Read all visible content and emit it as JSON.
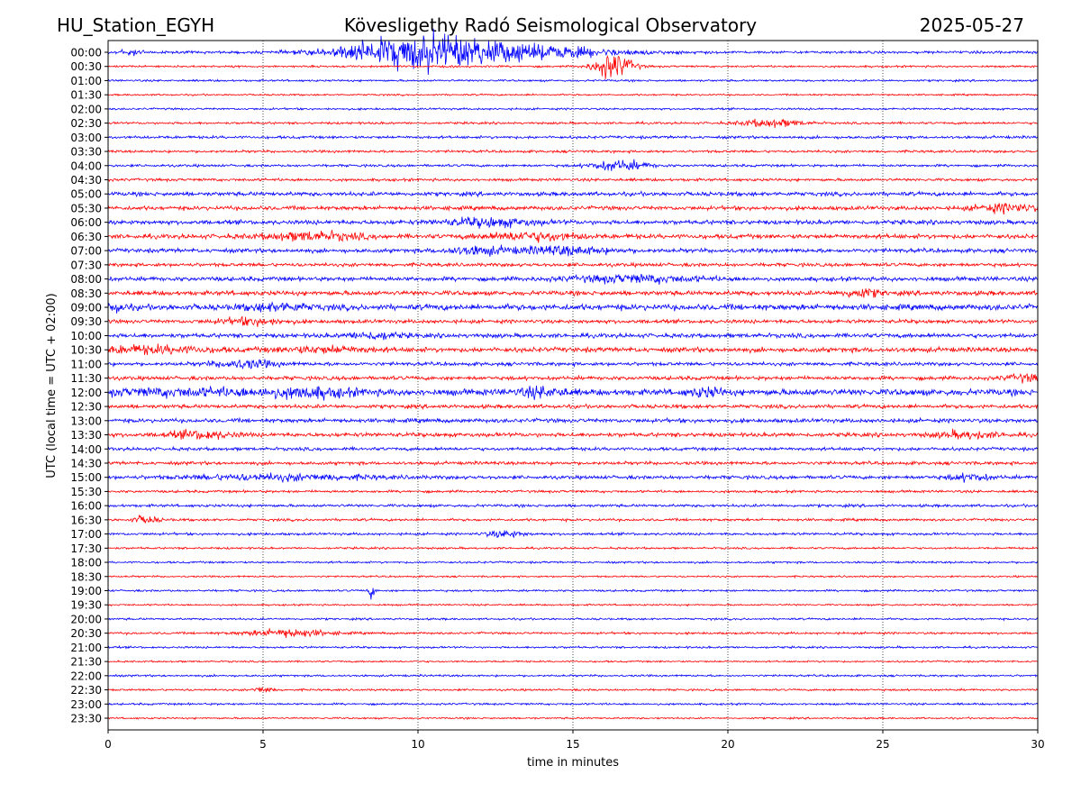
{
  "header": {
    "station": "HU_Station_EGYH",
    "observatory": "Kövesligethy Radó Seismological Observatory",
    "date": "2025-05-27"
  },
  "chart_data": {
    "type": "line",
    "xlabel": "time in minutes",
    "ylabel": "UTC (local time = UTC + 02:00)",
    "xlim": [
      0,
      30
    ],
    "x_ticks": [
      0,
      5,
      10,
      15,
      20,
      25,
      30
    ],
    "grid": "vertical dotted at x ticks",
    "series_colors": [
      "#0000ff",
      "#ff0000"
    ],
    "rows": [
      {
        "label": "00:00",
        "color": "#0000ff",
        "amp": 1.0,
        "bursts": [
          [
            9.9,
            2.2,
            11
          ],
          [
            12.5,
            3.5,
            6
          ],
          [
            0.7,
            0.5,
            2
          ]
        ]
      },
      {
        "label": "00:30",
        "color": "#ff0000",
        "amp": 0.8,
        "bursts": [
          [
            16.3,
            0.6,
            10
          ]
        ]
      },
      {
        "label": "01:00",
        "color": "#0000ff",
        "amp": 0.8,
        "bursts": []
      },
      {
        "label": "01:30",
        "color": "#ff0000",
        "amp": 0.7,
        "bursts": []
      },
      {
        "label": "02:00",
        "color": "#0000ff",
        "amp": 0.8,
        "bursts": []
      },
      {
        "label": "02:30",
        "color": "#ff0000",
        "amp": 0.9,
        "bursts": [
          [
            21.4,
            1.0,
            3
          ]
        ]
      },
      {
        "label": "03:00",
        "color": "#0000ff",
        "amp": 1.1,
        "bursts": []
      },
      {
        "label": "03:30",
        "color": "#ff0000",
        "amp": 1.0,
        "bursts": []
      },
      {
        "label": "04:00",
        "color": "#0000ff",
        "amp": 1.0,
        "bursts": [
          [
            16.5,
            0.9,
            4
          ]
        ]
      },
      {
        "label": "04:30",
        "color": "#ff0000",
        "amp": 1.1,
        "bursts": []
      },
      {
        "label": "05:00",
        "color": "#0000ff",
        "amp": 1.6,
        "bursts": []
      },
      {
        "label": "05:30",
        "color": "#ff0000",
        "amp": 1.6,
        "bursts": [
          [
            29.0,
            1.0,
            3
          ]
        ]
      },
      {
        "label": "06:00",
        "color": "#0000ff",
        "amp": 1.7,
        "bursts": [
          [
            12.3,
            1.5,
            3
          ]
        ]
      },
      {
        "label": "06:30",
        "color": "#ff0000",
        "amp": 1.8,
        "bursts": [
          [
            6.6,
            1.5,
            3
          ],
          [
            13.7,
            1.5,
            3
          ]
        ]
      },
      {
        "label": "07:00",
        "color": "#0000ff",
        "amp": 1.6,
        "bursts": [
          [
            11.9,
            1.0,
            3
          ],
          [
            14.7,
            1.5,
            3
          ]
        ]
      },
      {
        "label": "07:30",
        "color": "#ff0000",
        "amp": 1.4,
        "bursts": []
      },
      {
        "label": "08:00",
        "color": "#0000ff",
        "amp": 1.7,
        "bursts": [
          [
            17.0,
            2.0,
            2.5
          ]
        ]
      },
      {
        "label": "08:30",
        "color": "#ff0000",
        "amp": 1.8,
        "bursts": [
          [
            24.3,
            0.6,
            3
          ]
        ]
      },
      {
        "label": "09:00",
        "color": "#0000ff",
        "amp": 2.3,
        "bursts": [
          [
            5.5,
            1.0,
            2.5
          ],
          [
            0.2,
            0.4,
            3
          ]
        ]
      },
      {
        "label": "09:30",
        "color": "#ff0000",
        "amp": 1.5,
        "bursts": [
          [
            4.6,
            1.0,
            2.5
          ]
        ]
      },
      {
        "label": "10:00",
        "color": "#0000ff",
        "amp": 1.7,
        "bursts": [
          [
            8.6,
            0.8,
            2.5
          ]
        ]
      },
      {
        "label": "10:30",
        "color": "#ff0000",
        "amp": 1.9,
        "bursts": [
          [
            1.2,
            2.0,
            2.5
          ],
          [
            7.0,
            1.5,
            2
          ]
        ]
      },
      {
        "label": "11:00",
        "color": "#0000ff",
        "amp": 1.4,
        "bursts": [
          [
            4.4,
            1.0,
            3
          ]
        ]
      },
      {
        "label": "11:30",
        "color": "#ff0000",
        "amp": 1.5,
        "bursts": [
          [
            29.6,
            0.6,
            2.5
          ]
        ]
      },
      {
        "label": "12:00",
        "color": "#0000ff",
        "amp": 2.5,
        "bursts": [
          [
            6.5,
            1.5,
            3
          ],
          [
            2.5,
            3.0,
            2
          ],
          [
            14.0,
            0.8,
            3
          ],
          [
            19.3,
            0.5,
            3
          ]
        ]
      },
      {
        "label": "12:30",
        "color": "#ff0000",
        "amp": 1.5,
        "bursts": []
      },
      {
        "label": "13:00",
        "color": "#0000ff",
        "amp": 1.6,
        "bursts": []
      },
      {
        "label": "13:30",
        "color": "#ff0000",
        "amp": 1.6,
        "bursts": [
          [
            3.0,
            1.0,
            3
          ],
          [
            27.7,
            1.0,
            2.5
          ]
        ]
      },
      {
        "label": "14:00",
        "color": "#0000ff",
        "amp": 1.3,
        "bursts": []
      },
      {
        "label": "14:30",
        "color": "#ff0000",
        "amp": 1.3,
        "bursts": []
      },
      {
        "label": "15:00",
        "color": "#0000ff",
        "amp": 1.4,
        "bursts": [
          [
            5.5,
            3.0,
            2
          ],
          [
            27.8,
            0.7,
            2.5
          ]
        ]
      },
      {
        "label": "15:30",
        "color": "#ff0000",
        "amp": 1.0,
        "bursts": []
      },
      {
        "label": "16:00",
        "color": "#0000ff",
        "amp": 1.1,
        "bursts": []
      },
      {
        "label": "16:30",
        "color": "#ff0000",
        "amp": 1.0,
        "bursts": [
          [
            1.2,
            0.4,
            3
          ]
        ]
      },
      {
        "label": "17:00",
        "color": "#0000ff",
        "amp": 1.0,
        "bursts": [
          [
            12.8,
            0.6,
            2.5
          ]
        ]
      },
      {
        "label": "17:30",
        "color": "#ff0000",
        "amp": 0.8,
        "bursts": []
      },
      {
        "label": "18:00",
        "color": "#0000ff",
        "amp": 0.8,
        "bursts": []
      },
      {
        "label": "18:30",
        "color": "#ff0000",
        "amp": 0.7,
        "bursts": []
      },
      {
        "label": "19:00",
        "color": "#0000ff",
        "amp": 0.8,
        "bursts": [
          [
            8.5,
            0.1,
            6
          ]
        ]
      },
      {
        "label": "19:30",
        "color": "#ff0000",
        "amp": 0.7,
        "bursts": []
      },
      {
        "label": "20:00",
        "color": "#0000ff",
        "amp": 0.8,
        "bursts": []
      },
      {
        "label": "20:30",
        "color": "#ff0000",
        "amp": 0.9,
        "bursts": [
          [
            5.8,
            1.3,
            3
          ]
        ]
      },
      {
        "label": "21:00",
        "color": "#0000ff",
        "amp": 0.8,
        "bursts": []
      },
      {
        "label": "21:30",
        "color": "#ff0000",
        "amp": 0.7,
        "bursts": []
      },
      {
        "label": "22:00",
        "color": "#0000ff",
        "amp": 0.8,
        "bursts": []
      },
      {
        "label": "22:30",
        "color": "#ff0000",
        "amp": 0.8,
        "bursts": [
          [
            5.0,
            0.3,
            2.5
          ]
        ]
      },
      {
        "label": "23:00",
        "color": "#0000ff",
        "amp": 0.8,
        "bursts": []
      },
      {
        "label": "23:30",
        "color": "#ff0000",
        "amp": 0.7,
        "bursts": []
      }
    ]
  }
}
